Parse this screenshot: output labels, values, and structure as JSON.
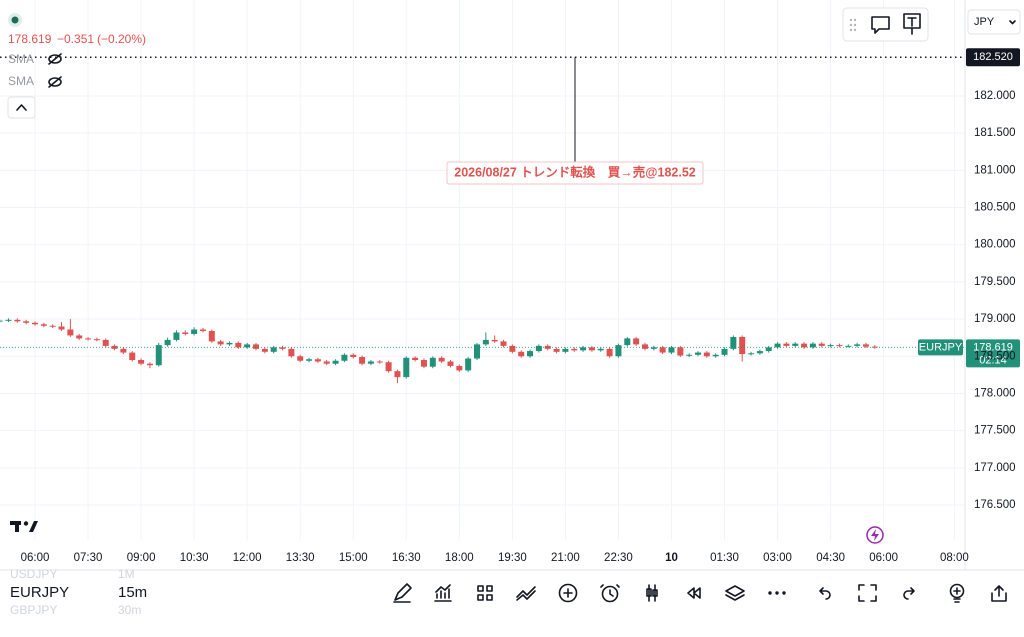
{
  "header": {
    "quote": "178.619",
    "change": "−0.351",
    "change_pct": "(−0.20%)",
    "indicators": [
      "SMA",
      "SMA"
    ],
    "currency": "JPY"
  },
  "toolbar": {
    "symbols": [
      {
        "name": "USDJPY",
        "interval": "1M"
      },
      {
        "name": "EURJPY",
        "interval": "15m"
      },
      {
        "name": "GBPJPY",
        "interval": "30m"
      }
    ]
  },
  "chart_data": {
    "type": "candlestick",
    "up_color": "#22917a",
    "down_color": "#e05252",
    "grid": true,
    "categories": [
      null,
      null,
      null,
      null,
      "06:00",
      null,
      null,
      null,
      null,
      null,
      "07:30",
      null,
      null,
      null,
      null,
      null,
      "09:00",
      null,
      null,
      null,
      null,
      null,
      "10:30",
      null,
      null,
      null,
      null,
      null,
      "12:00",
      null,
      null,
      null,
      null,
      null,
      "13:30",
      null,
      null,
      null,
      null,
      null,
      "15:00",
      null,
      null,
      null,
      null,
      null,
      "16:30",
      null,
      null,
      null,
      null,
      null,
      "18:00",
      null,
      null,
      null,
      null,
      null,
      "19:30",
      null,
      null,
      null,
      null,
      null,
      "21:00",
      null,
      null,
      null,
      null,
      null,
      "22:30",
      null,
      null,
      null,
      null,
      null,
      "10",
      null,
      null,
      null,
      null,
      null,
      "01:30",
      null,
      null,
      null,
      null,
      null,
      "03:00",
      null,
      null,
      null,
      null,
      null,
      "04:30",
      null,
      null,
      null,
      null,
      null,
      "06:00",
      null,
      null,
      null,
      null,
      null,
      null,
      null,
      "08:00"
    ],
    "open": [
      178.97,
      178.98,
      178.99,
      178.97,
      178.95,
      178.93,
      178.91,
      178.9,
      178.86,
      178.78,
      178.74,
      178.73,
      178.72,
      178.64,
      178.6,
      178.55,
      178.45,
      178.4,
      178.38,
      178.65,
      178.72,
      178.82,
      178.8,
      178.86,
      178.84,
      178.7,
      178.66,
      178.68,
      178.62,
      178.66,
      178.6,
      178.56,
      178.62,
      178.6,
      178.5,
      178.44,
      178.46,
      178.43,
      178.4,
      178.44,
      178.52,
      178.49,
      178.4,
      178.43,
      178.42,
      178.3,
      178.22,
      178.48,
      178.45,
      178.36,
      178.48,
      178.43,
      178.37,
      178.31,
      178.47,
      178.66,
      178.72,
      178.7,
      178.64,
      178.56,
      178.5,
      178.57,
      178.64,
      178.6,
      178.56,
      178.6,
      178.58,
      178.62,
      178.58,
      178.6,
      178.5,
      178.65,
      178.74,
      178.66,
      178.6,
      178.62,
      178.55,
      178.62,
      178.51,
      178.52,
      178.55,
      178.5,
      178.52,
      178.6,
      178.76,
      178.53,
      178.54,
      178.57,
      178.62,
      178.67,
      178.64,
      178.67,
      178.62,
      178.67,
      178.64,
      178.65,
      178.64,
      178.64,
      178.66,
      178.63,
      null,
      null,
      null,
      null,
      null,
      null,
      null,
      null,
      null
    ],
    "high": [
      179.0,
      179.01,
      179.01,
      178.99,
      178.97,
      178.95,
      178.93,
      178.96,
      179.0,
      178.8,
      178.76,
      178.75,
      178.74,
      178.66,
      178.62,
      178.57,
      178.47,
      178.42,
      178.68,
      178.75,
      178.85,
      178.85,
      178.89,
      178.88,
      178.86,
      178.72,
      178.7,
      178.7,
      178.68,
      178.68,
      178.62,
      178.64,
      178.64,
      178.62,
      178.52,
      178.48,
      178.48,
      178.45,
      178.46,
      178.54,
      178.54,
      178.51,
      178.45,
      178.45,
      178.44,
      178.32,
      178.5,
      178.5,
      178.47,
      178.5,
      178.5,
      178.45,
      178.39,
      178.49,
      178.68,
      178.82,
      178.78,
      178.72,
      178.66,
      178.58,
      178.59,
      178.66,
      178.66,
      178.62,
      178.62,
      178.62,
      178.64,
      178.64,
      178.62,
      178.62,
      178.67,
      178.76,
      178.76,
      178.68,
      178.64,
      178.64,
      178.64,
      178.64,
      178.54,
      178.57,
      178.57,
      178.54,
      178.62,
      178.78,
      178.78,
      178.56,
      178.59,
      178.64,
      178.69,
      178.69,
      178.69,
      178.69,
      178.69,
      178.69,
      178.67,
      178.67,
      178.66,
      178.68,
      178.68,
      178.65,
      null,
      null,
      null,
      null,
      null,
      null,
      null,
      null,
      null
    ],
    "low": [
      178.95,
      178.96,
      178.95,
      178.93,
      178.91,
      178.89,
      178.88,
      178.84,
      178.76,
      178.72,
      178.71,
      178.7,
      178.62,
      178.58,
      178.53,
      178.43,
      178.38,
      178.34,
      178.36,
      178.63,
      178.7,
      178.78,
      178.78,
      178.82,
      178.68,
      178.64,
      178.64,
      178.6,
      178.6,
      178.58,
      178.54,
      178.54,
      178.58,
      178.48,
      178.42,
      178.42,
      178.41,
      178.38,
      178.38,
      178.42,
      178.47,
      178.38,
      178.38,
      178.4,
      178.28,
      178.14,
      178.2,
      178.43,
      178.34,
      178.34,
      178.41,
      178.35,
      178.29,
      178.29,
      178.45,
      178.64,
      178.68,
      178.62,
      178.54,
      178.48,
      178.48,
      178.55,
      178.58,
      178.54,
      178.54,
      178.56,
      178.56,
      178.56,
      178.56,
      178.48,
      178.48,
      178.63,
      178.64,
      178.58,
      178.58,
      178.53,
      178.53,
      178.49,
      178.49,
      178.5,
      178.48,
      178.48,
      178.5,
      178.58,
      178.43,
      178.51,
      178.52,
      178.55,
      178.6,
      178.62,
      178.62,
      178.6,
      178.6,
      178.62,
      178.62,
      178.62,
      178.62,
      178.62,
      178.61,
      178.6,
      null,
      null,
      null,
      null,
      null,
      null,
      null,
      null,
      null
    ],
    "close": [
      178.98,
      178.99,
      178.97,
      178.95,
      178.93,
      178.91,
      178.9,
      178.86,
      178.78,
      178.74,
      178.73,
      178.72,
      178.64,
      178.6,
      178.55,
      178.45,
      178.4,
      178.38,
      178.65,
      178.72,
      178.82,
      178.8,
      178.86,
      178.84,
      178.7,
      178.66,
      178.68,
      178.62,
      178.66,
      178.6,
      178.56,
      178.62,
      178.6,
      178.5,
      178.44,
      178.46,
      178.43,
      178.4,
      178.44,
      178.52,
      178.49,
      178.4,
      178.43,
      178.42,
      178.3,
      178.22,
      178.48,
      178.45,
      178.36,
      178.48,
      178.43,
      178.37,
      178.31,
      178.47,
      178.66,
      178.72,
      178.7,
      178.64,
      178.56,
      178.5,
      178.57,
      178.64,
      178.6,
      178.56,
      178.6,
      178.58,
      178.62,
      178.58,
      178.6,
      178.5,
      178.65,
      178.74,
      178.66,
      178.6,
      178.62,
      178.55,
      178.62,
      178.51,
      178.52,
      178.55,
      178.5,
      178.52,
      178.6,
      178.76,
      178.53,
      178.54,
      178.57,
      178.62,
      178.67,
      178.64,
      178.67,
      178.62,
      178.67,
      178.64,
      178.65,
      178.64,
      178.64,
      178.66,
      178.63,
      178.619,
      null,
      null,
      null,
      null,
      null,
      null,
      null,
      null,
      null
    ],
    "ylim": [
      176.03,
      183.29
    ],
    "yticks": [
      {
        "value": 176.5,
        "label": "176.500"
      },
      {
        "value": 177,
        "label": "177.000"
      },
      {
        "value": 177.5,
        "label": "177.500"
      },
      {
        "value": 178,
        "label": "178.000"
      },
      {
        "value": 178.5,
        "label": "178.500"
      },
      {
        "value": 179,
        "label": "179.000"
      },
      {
        "value": 179.5,
        "label": "179.500"
      },
      {
        "value": 180,
        "label": "180.000"
      },
      {
        "value": 180.5,
        "label": "180.500"
      },
      {
        "value": 181,
        "label": "181.000"
      },
      {
        "value": 181.5,
        "label": "181.500"
      },
      {
        "value": 182,
        "label": "182.000"
      }
    ],
    "last_price": {
      "value": 178.619,
      "label": "178.619",
      "symbol": "EURJPY",
      "countdown": "02:14"
    },
    "hline": {
      "value": 182.52,
      "label": "182.520"
    },
    "annotation": "2026/08/27 トレンド転換　買→売@182.52"
  }
}
